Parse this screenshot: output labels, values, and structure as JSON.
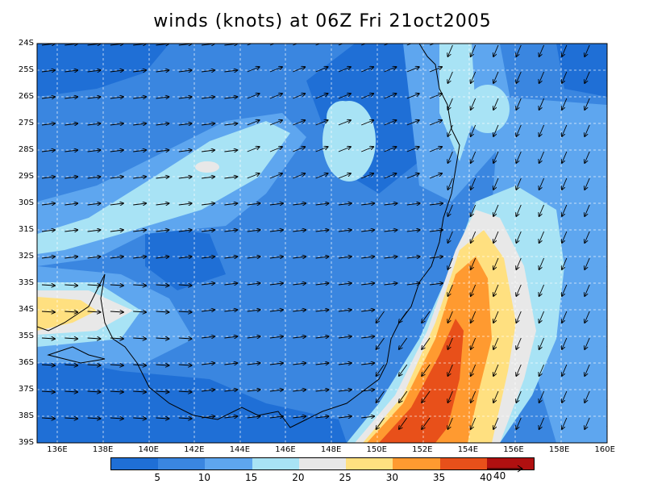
{
  "title": "winds (knots) at 06Z Fri 21oct2005",
  "y_ticks": [
    "24S",
    "25S",
    "26S",
    "27S",
    "28S",
    "29S",
    "30S",
    "31S",
    "32S",
    "33S",
    "34S",
    "35S",
    "36S",
    "37S",
    "38S",
    "39S"
  ],
  "x_ticks": [
    "136E",
    "138E",
    "140E",
    "142E",
    "144E",
    "146E",
    "148E",
    "150E",
    "152E",
    "154E",
    "156E",
    "158E",
    "160E"
  ],
  "colorbar": {
    "labels": [
      "5",
      "10",
      "15",
      "20",
      "25",
      "30",
      "35",
      "40"
    ],
    "colors": [
      "#1f6fd6",
      "#3a86e0",
      "#5ea6ef",
      "#a8e3f5",
      "#e8e8e8",
      "#ffe080",
      "#ff9a30",
      "#e8501a",
      "#b01010"
    ]
  },
  "vector_ref": "40",
  "chart_data": {
    "type": "heatmap",
    "title": "winds (knots) at 06Z Fri 21oct2005",
    "xlim": [
      135,
      160
    ],
    "ylim": [
      -39,
      -24
    ],
    "units": "knots",
    "levels": [
      5,
      10,
      15,
      20,
      25,
      30,
      35,
      40
    ],
    "max_region": "offshore south-east of coast near 150E-154E, 34S-39S, 35-40 knots"
  }
}
